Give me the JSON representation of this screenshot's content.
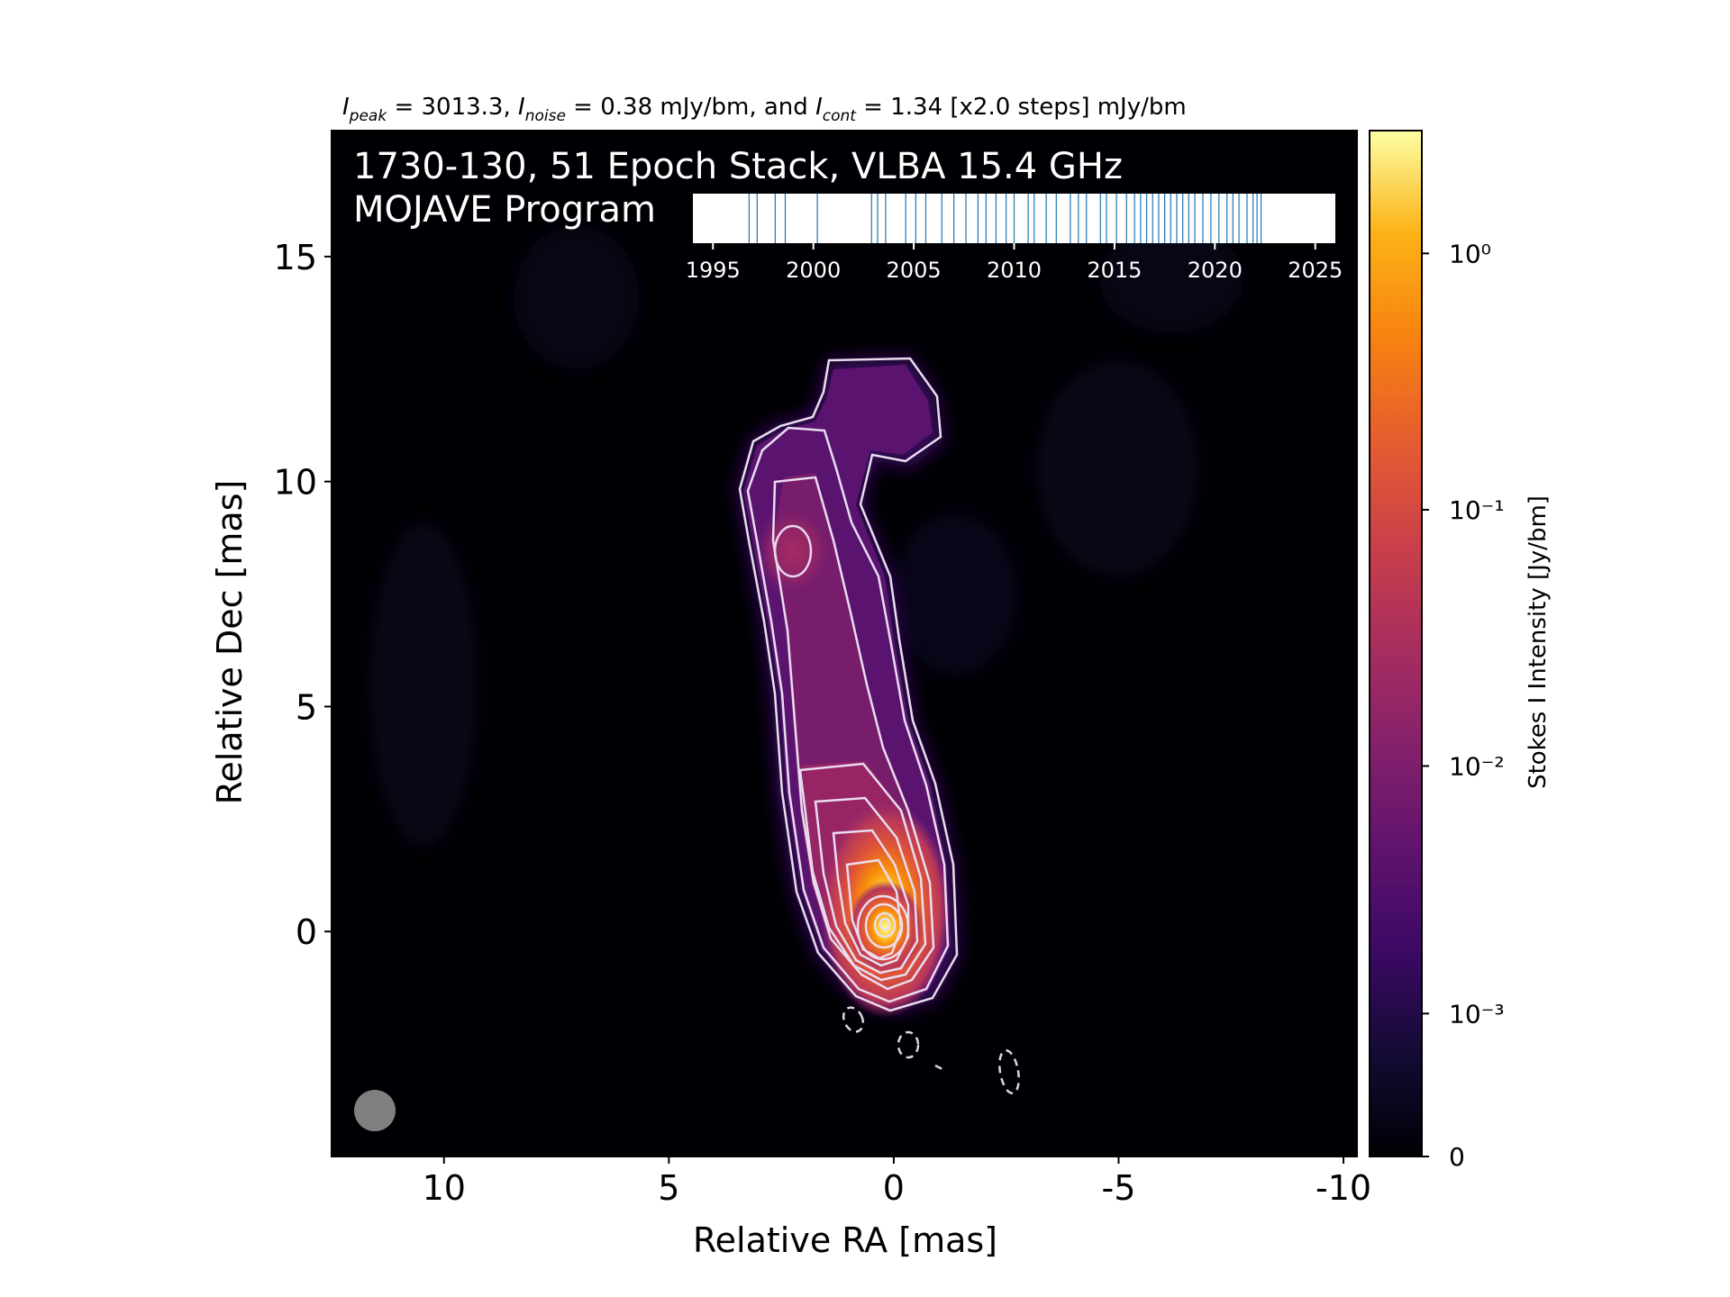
{
  "header": {
    "peak_label": "I",
    "peak_sub": "peak",
    "peak_value": " = 3013.3, ",
    "noise_label": "I",
    "noise_sub": "noise",
    "noise_value": " = 0.38 mJy/bm, and ",
    "cont_label": "I",
    "cont_sub": "cont",
    "cont_value": " = 1.34 [x2.0 steps] mJy/bm"
  },
  "overlay": {
    "line1": "1730-130, 51 Epoch Stack, VLBA 15.4 GHz",
    "line2": "MOJAVE Program"
  },
  "chart_data": {
    "type": "heatmap",
    "title": "",
    "xlabel": "Relative RA [mas]",
    "ylabel": "Relative Dec [mas]",
    "xlim": [
      12.5,
      -10.3
    ],
    "ylim": [
      -5.0,
      17.8
    ],
    "x_ticks": [
      10,
      5,
      0,
      -5,
      -10
    ],
    "x_tick_labels": [
      "10",
      "5",
      "0",
      "-5",
      "-10"
    ],
    "y_ticks": [
      0,
      5,
      10,
      15
    ],
    "y_tick_labels": [
      "0",
      "5",
      "10",
      "15"
    ],
    "source": "1730-130",
    "epochs_stacked": 51,
    "instrument": "VLBA",
    "frequency": "15.4 GHz",
    "program": "MOJAVE Program",
    "peak_intensity_mJy_per_beam": 3013.3,
    "noise_mJy_per_beam": 0.38,
    "lowest_contour_mJy_per_beam": 1.34,
    "contour_step_factor": 2.0,
    "core_position": [
      0,
      0
    ],
    "ridge": [
      {
        "ra": 0.0,
        "dec": 0.0
      },
      {
        "ra": 0.1,
        "dec": 1.5
      },
      {
        "ra": 0.5,
        "dec": 3.3
      },
      {
        "ra": 0.8,
        "dec": 5.5
      },
      {
        "ra": 1.2,
        "dec": 7.0
      },
      {
        "ra": 2.1,
        "dec": 8.4
      },
      {
        "ra": 1.3,
        "dec": 10.8
      },
      {
        "ra": 0.2,
        "dec": 11.8
      }
    ],
    "beam": {
      "major_mas": 0.95,
      "minor_mas": 0.95,
      "pa_deg": 0
    },
    "negative_contours": [
      {
        "ra": 0.8,
        "dec": -2.1
      },
      {
        "ra": -0.5,
        "dec": -2.6
      },
      {
        "ra": -1.1,
        "dec": -3.2
      },
      {
        "ra": -2.7,
        "dec": -3.3
      }
    ],
    "colorbar": {
      "label": "Stokes I Intensity [Jy/bm]",
      "scale": "asinh",
      "colormap": "inferno",
      "range": [
        0,
        3.0133
      ],
      "ticks": [
        0,
        0.001,
        0.01,
        0.1,
        1
      ],
      "tick_labels": [
        "0",
        "10⁻³",
        "10⁻²",
        "10⁻¹",
        "10⁰"
      ]
    },
    "epoch_timeline": {
      "xlim": [
        1994.0,
        2026.0
      ],
      "ticks": [
        1995,
        2000,
        2005,
        2010,
        2015,
        2020,
        2025
      ],
      "tick_labels": [
        "1995",
        "2000",
        "2005",
        "2010",
        "2015",
        "2020",
        "2025"
      ],
      "epochs": [
        1996.8,
        1997.2,
        1998.1,
        1998.6,
        2000.2,
        2002.9,
        2003.2,
        2003.6,
        2004.6,
        2005.1,
        2005.6,
        2006.4,
        2007.0,
        2007.6,
        2008.2,
        2008.6,
        2009.1,
        2009.6,
        2010.0,
        2010.7,
        2011.0,
        2011.6,
        2012.1,
        2012.8,
        2013.2,
        2013.6,
        2014.3,
        2014.6,
        2015.1,
        2015.6,
        2016.0,
        2016.3,
        2016.6,
        2016.9,
        2017.2,
        2017.5,
        2017.8,
        2018.1,
        2018.4,
        2018.7,
        2019.0,
        2019.4,
        2019.8,
        2020.2,
        2020.6,
        2020.9,
        2021.2,
        2021.6,
        2021.9,
        2022.1,
        2022.3
      ],
      "line_color": "#1f77b4"
    }
  }
}
